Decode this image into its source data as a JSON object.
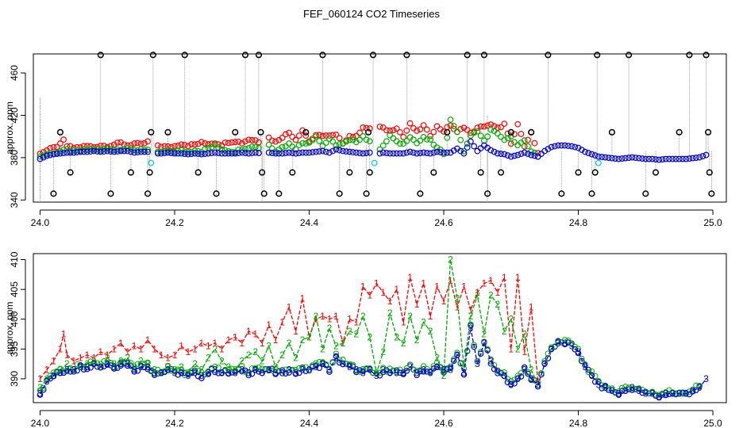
{
  "title": "FEF_060124  CO2 Timeseries",
  "colors": {
    "s1": "#ff0000",
    "s2": "#00aa00",
    "s3": "#0000cc",
    "black": "#000000",
    "cyan": "#00cccc",
    "spike": "#888888"
  },
  "chart_data": [
    {
      "type": "scatter",
      "title": "FEF_060124  CO2 Timeseries",
      "xlabel": "",
      "ylabel": "approx. ppm",
      "xlim": [
        23.99,
        25.02
      ],
      "ylim": [
        338,
        478
      ],
      "xticks": [
        24.0,
        24.2,
        24.4,
        24.6,
        24.8,
        25.0
      ],
      "xtick_labels": [
        "24.0",
        "24.2",
        "24.4",
        "24.6",
        "24.8",
        "25.0"
      ],
      "yticks": [
        340,
        380,
        420,
        460
      ],
      "ytick_labels": [
        "340",
        "380",
        "420",
        "460"
      ],
      "outliers_black": [
        [
          24.02,
          346
        ],
        [
          24.03,
          404
        ],
        [
          24.045,
          366
        ],
        [
          24.09,
          477
        ],
        [
          24.105,
          346
        ],
        [
          24.135,
          366
        ],
        [
          24.16,
          346
        ],
        [
          24.163,
          366
        ],
        [
          24.165,
          404
        ],
        [
          24.168,
          477
        ],
        [
          24.19,
          404
        ],
        [
          24.215,
          477
        ],
        [
          24.235,
          366
        ],
        [
          24.262,
          346
        ],
        [
          24.29,
          404
        ],
        [
          24.305,
          477
        ],
        [
          24.325,
          477
        ],
        [
          24.328,
          404
        ],
        [
          24.33,
          366
        ],
        [
          24.333,
          346
        ],
        [
          24.355,
          346
        ],
        [
          24.375,
          366
        ],
        [
          24.395,
          404
        ],
        [
          24.42,
          477
        ],
        [
          24.445,
          346
        ],
        [
          24.46,
          366
        ],
        [
          24.485,
          346
        ],
        [
          24.488,
          404
        ],
        [
          24.49,
          366
        ],
        [
          24.495,
          477
        ],
        [
          24.545,
          477
        ],
        [
          24.565,
          346
        ],
        [
          24.585,
          366
        ],
        [
          24.605,
          404
        ],
        [
          24.635,
          477
        ],
        [
          24.655,
          366
        ],
        [
          24.66,
          477
        ],
        [
          24.665,
          346
        ],
        [
          24.685,
          366
        ],
        [
          24.7,
          404
        ],
        [
          24.73,
          404
        ],
        [
          24.755,
          477
        ],
        [
          24.775,
          346
        ],
        [
          24.8,
          366
        ],
        [
          24.82,
          346
        ],
        [
          24.825,
          366
        ],
        [
          24.828,
          477
        ],
        [
          24.85,
          404
        ],
        [
          24.875,
          477
        ],
        [
          24.9,
          346
        ],
        [
          24.915,
          366
        ],
        [
          24.95,
          404
        ],
        [
          24.965,
          477
        ],
        [
          24.99,
          477
        ],
        [
          24.993,
          404
        ],
        [
          24.995,
          366
        ],
        [
          24.998,
          346
        ]
      ],
      "outliers_cyan": [
        [
          24.165,
          375
        ],
        [
          24.497,
          375
        ],
        [
          24.83,
          375
        ]
      ]
    },
    {
      "type": "line",
      "title": "",
      "xlabel": "",
      "ylabel": "approx. ppm",
      "xlim": [
        23.99,
        25.02
      ],
      "ylim": [
        386,
        411
      ],
      "xticks": [
        24.0,
        24.2,
        24.4,
        24.6,
        24.8,
        25.0
      ],
      "xtick_labels": [
        "24.0",
        "24.2",
        "24.4",
        "24.6",
        "24.8",
        "25.0"
      ],
      "yticks": [
        390,
        395,
        400,
        405,
        410
      ],
      "ytick_labels": [
        "390",
        "395",
        "400",
        "405",
        "410"
      ],
      "series": [
        {
          "name": "1",
          "marker": "1",
          "x": [
            24.0,
            24.01,
            24.02,
            24.03,
            24.035,
            24.04,
            24.05,
            24.06,
            24.07,
            24.08,
            24.09,
            24.1,
            24.11,
            24.12,
            24.13,
            24.14,
            24.15,
            24.16,
            24.17,
            24.18,
            24.19,
            24.2,
            24.21,
            24.22,
            24.23,
            24.24,
            24.25,
            24.26,
            24.27,
            24.28,
            24.29,
            24.3,
            24.31,
            24.32,
            24.33,
            24.34,
            24.35,
            24.36,
            24.37,
            24.38,
            24.39,
            24.4,
            24.41,
            24.42,
            24.43,
            24.44,
            24.45,
            24.46,
            24.47,
            24.48,
            24.49,
            24.5,
            24.51,
            24.52,
            24.53,
            24.54,
            24.55,
            24.56,
            24.57,
            24.58,
            24.59,
            24.6,
            24.61,
            24.62,
            24.63,
            24.64,
            24.65,
            24.66,
            24.67,
            24.68,
            24.69,
            24.7,
            24.71,
            24.72,
            24.73,
            24.74
          ],
          "y": [
            390.0,
            391.5,
            393.0,
            395.0,
            397.5,
            394.0,
            393.0,
            393.5,
            394.0,
            393.5,
            394.5,
            394.0,
            395.0,
            396.0,
            394.5,
            395.5,
            395.0,
            396.5,
            395.0,
            394.0,
            393.5,
            394.0,
            395.5,
            394.5,
            395.0,
            396.0,
            395.5,
            396.0,
            395.0,
            396.5,
            397.0,
            396.0,
            398.0,
            397.5,
            396.0,
            399.0,
            396.5,
            399.5,
            402.0,
            398.0,
            403.5,
            397.0,
            400.0,
            400.5,
            400.0,
            400.5,
            396.0,
            400.0,
            399.5,
            405.5,
            404.0,
            406.0,
            404.5,
            403.0,
            405.0,
            399.5,
            407.0,
            402.5,
            406.0,
            400.5,
            405.5,
            403.0,
            406.5,
            402.0,
            405.5,
            401.5,
            404.5,
            406.0,
            406.5,
            404.5,
            407.0,
            395.0,
            407.0,
            394.5,
            402.0,
            389.5
          ]
        },
        {
          "name": "2",
          "marker": "2",
          "x": [
            24.0,
            24.01,
            24.02,
            24.03,
            24.04,
            24.05,
            24.06,
            24.07,
            24.08,
            24.09,
            24.1,
            24.11,
            24.12,
            24.13,
            24.14,
            24.15,
            24.16,
            24.17,
            24.18,
            24.19,
            24.2,
            24.21,
            24.22,
            24.23,
            24.24,
            24.25,
            24.26,
            24.27,
            24.28,
            24.29,
            24.3,
            24.31,
            24.32,
            24.33,
            24.34,
            24.35,
            24.36,
            24.37,
            24.38,
            24.39,
            24.4,
            24.41,
            24.42,
            24.43,
            24.44,
            24.45,
            24.46,
            24.47,
            24.48,
            24.49,
            24.5,
            24.51,
            24.52,
            24.53,
            24.54,
            24.55,
            24.56,
            24.57,
            24.58,
            24.59,
            24.6,
            24.61,
            24.62,
            24.63,
            24.64,
            24.65,
            24.66,
            24.67,
            24.68,
            24.69,
            24.7,
            24.71,
            24.72,
            24.73,
            24.74
          ],
          "y": [
            388.5,
            390.0,
            390.5,
            391.5,
            392.5,
            391.5,
            392.0,
            392.5,
            393.0,
            392.0,
            393.5,
            392.5,
            393.0,
            393.5,
            392.0,
            393.0,
            392.5,
            391.5,
            391.0,
            392.0,
            391.5,
            392.0,
            391.0,
            392.5,
            391.5,
            393.5,
            395.0,
            393.0,
            392.0,
            391.5,
            393.0,
            394.0,
            394.5,
            393.0,
            395.5,
            392.0,
            394.0,
            396.0,
            393.5,
            396.5,
            397.0,
            400.5,
            395.0,
            398.5,
            395.5,
            396.0,
            398.0,
            397.5,
            400.5,
            397.0,
            391.0,
            394.5,
            401.0,
            397.0,
            396.0,
            400.5,
            396.5,
            399.5,
            398.0,
            393.5,
            390.5,
            410.0,
            403.5,
            392.0,
            400.5,
            404.0,
            397.5,
            404.0,
            402.5,
            398.0,
            400.0,
            395.0,
            397.5,
            391.5,
            389.0
          ]
        },
        {
          "name": "3",
          "marker": "3",
          "x": [
            24.0,
            24.01,
            24.02,
            24.03,
            24.04,
            24.05,
            24.06,
            24.07,
            24.08,
            24.09,
            24.1,
            24.11,
            24.12,
            24.13,
            24.14,
            24.15,
            24.16,
            24.17,
            24.18,
            24.19,
            24.2,
            24.21,
            24.22,
            24.23,
            24.24,
            24.25,
            24.26,
            24.27,
            24.28,
            24.29,
            24.3,
            24.31,
            24.32,
            24.33,
            24.34,
            24.35,
            24.36,
            24.37,
            24.38,
            24.39,
            24.4,
            24.41,
            24.42,
            24.43,
            24.44,
            24.45,
            24.46,
            24.47,
            24.48,
            24.49,
            24.5,
            24.51,
            24.52,
            24.53,
            24.54,
            24.55,
            24.56,
            24.57,
            24.58,
            24.59,
            24.6,
            24.61,
            24.62,
            24.63,
            24.64,
            24.65,
            24.66,
            24.67,
            24.68,
            24.69,
            24.7,
            24.71,
            24.72,
            24.73,
            24.74,
            24.75,
            24.76,
            24.77,
            24.78,
            24.79,
            24.8,
            24.81,
            24.82,
            24.83,
            24.84,
            24.85,
            24.86,
            24.87,
            24.88,
            24.89,
            24.9,
            24.91,
            24.92,
            24.93,
            24.94,
            24.95,
            24.96,
            24.97,
            24.98,
            24.99
          ],
          "y": [
            387.5,
            389.5,
            390.5,
            391.0,
            391.5,
            391.5,
            392.0,
            392.0,
            392.5,
            392.0,
            392.5,
            392.0,
            392.5,
            392.5,
            391.5,
            392.0,
            392.0,
            391.0,
            391.0,
            391.5,
            391.0,
            391.0,
            390.5,
            391.0,
            390.5,
            391.0,
            391.5,
            391.0,
            391.0,
            391.0,
            391.5,
            391.0,
            391.5,
            391.0,
            391.5,
            391.0,
            391.0,
            391.5,
            391.0,
            391.5,
            391.5,
            392.0,
            392.5,
            391.5,
            393.5,
            392.5,
            392.0,
            391.5,
            391.0,
            391.5,
            390.5,
            391.5,
            391.0,
            391.0,
            391.0,
            392.0,
            391.0,
            391.5,
            391.0,
            392.0,
            391.5,
            391.5,
            394.0,
            391.0,
            398.5,
            392.5,
            396.0,
            393.0,
            391.0,
            390.5,
            389.0,
            390.0,
            391.5,
            390.0,
            389.0,
            392.5,
            395.0,
            396.0,
            396.0,
            395.5,
            394.5,
            392.0,
            390.5,
            389.0,
            388.5,
            388.0,
            387.5,
            388.0,
            388.5,
            388.0,
            387.5,
            387.5,
            387.0,
            387.5,
            387.5,
            387.5,
            387.5,
            388.0,
            388.5,
            390.0
          ]
        }
      ]
    }
  ]
}
